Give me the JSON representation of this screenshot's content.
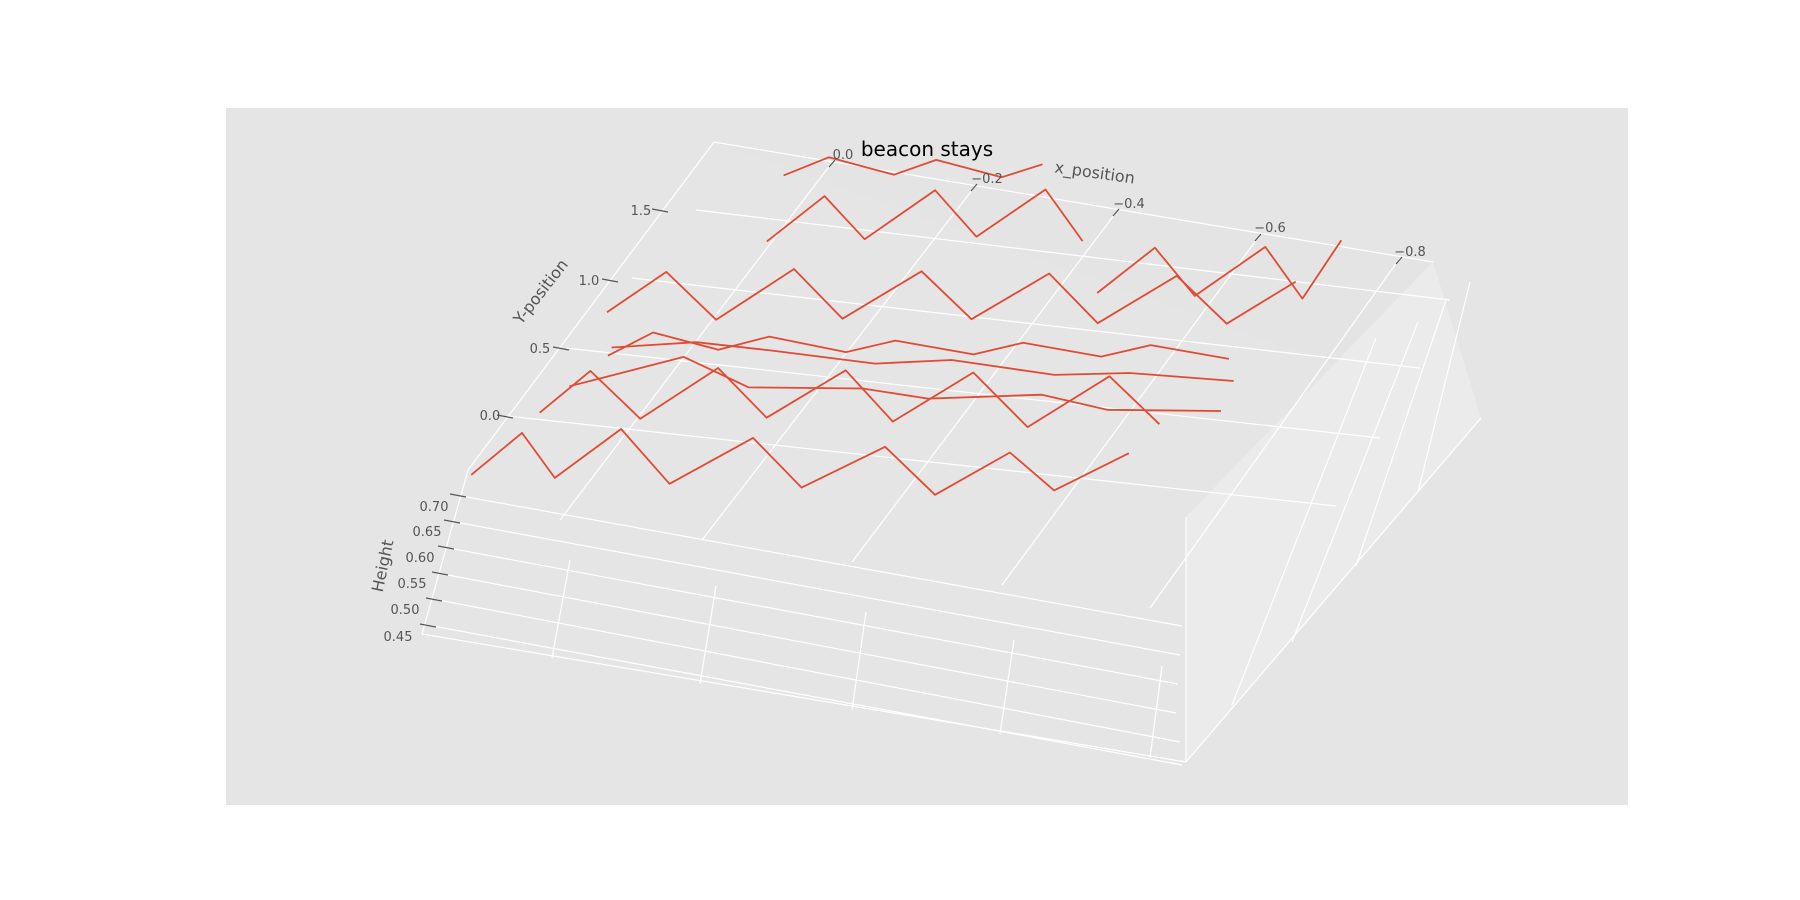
{
  "chart_data": {
    "type": "line",
    "projection": "3d",
    "title": "beacon stays",
    "xlabel": "x_position",
    "ylabel": "Y-position",
    "zlabel": "Height",
    "x_ticks": [
      "0.0",
      "−0.2",
      "−0.4",
      "−0.6",
      "−0.8"
    ],
    "y_ticks": [
      "0.0",
      "0.5",
      "1.0",
      "1.5"
    ],
    "z_ticks": [
      "0.45",
      "0.50",
      "0.55",
      "0.60",
      "0.65",
      "0.70"
    ],
    "xlim": [
      0.0,
      -0.85
    ],
    "ylim": [
      -0.2,
      1.8
    ],
    "zlim": [
      0.44,
      0.73
    ],
    "style": "ggplot",
    "grid": true,
    "line_color": "#E24A33",
    "pane_color": "#E5E5E5",
    "series": [
      {
        "segments": [
          [
            [
              -0.02,
              -0.1,
              0.47
            ],
            [
              -0.07,
              -0.05,
              0.55
            ],
            [
              -0.12,
              -0.12,
              0.5
            ],
            [
              -0.18,
              -0.02,
              0.58
            ],
            [
              -0.25,
              -0.1,
              0.52
            ],
            [
              -0.33,
              0.0,
              0.6
            ],
            [
              -0.4,
              -0.08,
              0.55
            ],
            [
              -0.48,
              0.02,
              0.62
            ],
            [
              -0.55,
              -0.05,
              0.57
            ],
            [
              -0.62,
              0.05,
              0.64
            ],
            [
              -0.68,
              0.0,
              0.6
            ],
            [
              -0.75,
              0.1,
              0.66
            ]
          ],
          [
            [
              -0.05,
              0.2,
              0.5
            ],
            [
              -0.1,
              0.25,
              0.58
            ],
            [
              -0.17,
              0.18,
              0.53
            ],
            [
              -0.24,
              0.3,
              0.61
            ],
            [
              -0.31,
              0.22,
              0.56
            ],
            [
              -0.38,
              0.35,
              0.63
            ],
            [
              -0.45,
              0.26,
              0.58
            ],
            [
              -0.52,
              0.4,
              0.65
            ],
            [
              -0.6,
              0.3,
              0.6
            ],
            [
              -0.67,
              0.45,
              0.67
            ],
            [
              -0.74,
              0.38,
              0.62
            ]
          ],
          [
            [
              -0.08,
              0.5,
              0.52
            ],
            [
              -0.14,
              0.45,
              0.6
            ],
            [
              -0.2,
              0.55,
              0.55
            ],
            [
              -0.27,
              0.48,
              0.62
            ],
            [
              -0.34,
              0.6,
              0.57
            ],
            [
              -0.41,
              0.52,
              0.64
            ],
            [
              -0.48,
              0.65,
              0.59
            ],
            [
              -0.55,
              0.57,
              0.66
            ],
            [
              -0.62,
              0.7,
              0.61
            ],
            [
              -0.69,
              0.62,
              0.68
            ],
            [
              -0.76,
              0.75,
              0.63
            ]
          ],
          [
            [
              -0.03,
              0.8,
              0.49
            ],
            [
              -0.09,
              0.85,
              0.57
            ],
            [
              -0.16,
              0.78,
              0.52
            ],
            [
              -0.23,
              0.9,
              0.6
            ],
            [
              -0.3,
              0.82,
              0.55
            ],
            [
              -0.37,
              0.95,
              0.62
            ],
            [
              -0.44,
              0.88,
              0.57
            ],
            [
              -0.51,
              1.0,
              0.64
            ],
            [
              -0.58,
              0.92,
              0.59
            ],
            [
              -0.65,
              1.05,
              0.66
            ],
            [
              -0.72,
              0.98,
              0.61
            ],
            [
              -0.78,
              1.1,
              0.67
            ]
          ],
          [
            [
              -0.15,
              1.2,
              0.53
            ],
            [
              -0.2,
              1.3,
              0.6
            ],
            [
              -0.26,
              1.22,
              0.56
            ],
            [
              -0.32,
              1.35,
              0.63
            ],
            [
              -0.38,
              1.28,
              0.58
            ],
            [
              -0.44,
              1.4,
              0.65
            ],
            [
              -0.5,
              1.3,
              0.6
            ]
          ],
          [
            [
              -0.12,
              1.5,
              0.55
            ],
            [
              -0.18,
              1.45,
              0.62
            ],
            [
              -0.24,
              1.55,
              0.57
            ],
            [
              -0.3,
              1.48,
              0.64
            ],
            [
              -0.36,
              1.58,
              0.59
            ],
            [
              -0.42,
              1.5,
              0.66
            ]
          ],
          [
            [
              -0.55,
              1.1,
              0.58
            ],
            [
              -0.6,
              1.2,
              0.65
            ],
            [
              -0.66,
              1.12,
              0.6
            ],
            [
              -0.72,
              1.25,
              0.67
            ],
            [
              -0.78,
              1.15,
              0.62
            ],
            [
              -0.8,
              1.3,
              0.69
            ]
          ],
          [
            [
              -0.1,
              0.1,
              0.6
            ],
            [
              -0.2,
              0.3,
              0.62
            ],
            [
              -0.3,
              0.15,
              0.64
            ],
            [
              -0.4,
              0.35,
              0.6
            ],
            [
              -0.5,
              0.2,
              0.66
            ],
            [
              -0.6,
              0.4,
              0.63
            ],
            [
              -0.7,
              0.25,
              0.68
            ],
            [
              -0.8,
              0.45,
              0.64
            ]
          ],
          [
            [
              -0.06,
              0.65,
              0.48
            ],
            [
              -0.15,
              0.7,
              0.5
            ],
            [
              -0.25,
              0.62,
              0.54
            ],
            [
              -0.35,
              0.75,
              0.5
            ],
            [
              -0.45,
              0.68,
              0.56
            ],
            [
              -0.55,
              0.8,
              0.52
            ],
            [
              -0.65,
              0.72,
              0.58
            ],
            [
              -0.75,
              0.85,
              0.55
            ]
          ]
        ]
      }
    ]
  }
}
